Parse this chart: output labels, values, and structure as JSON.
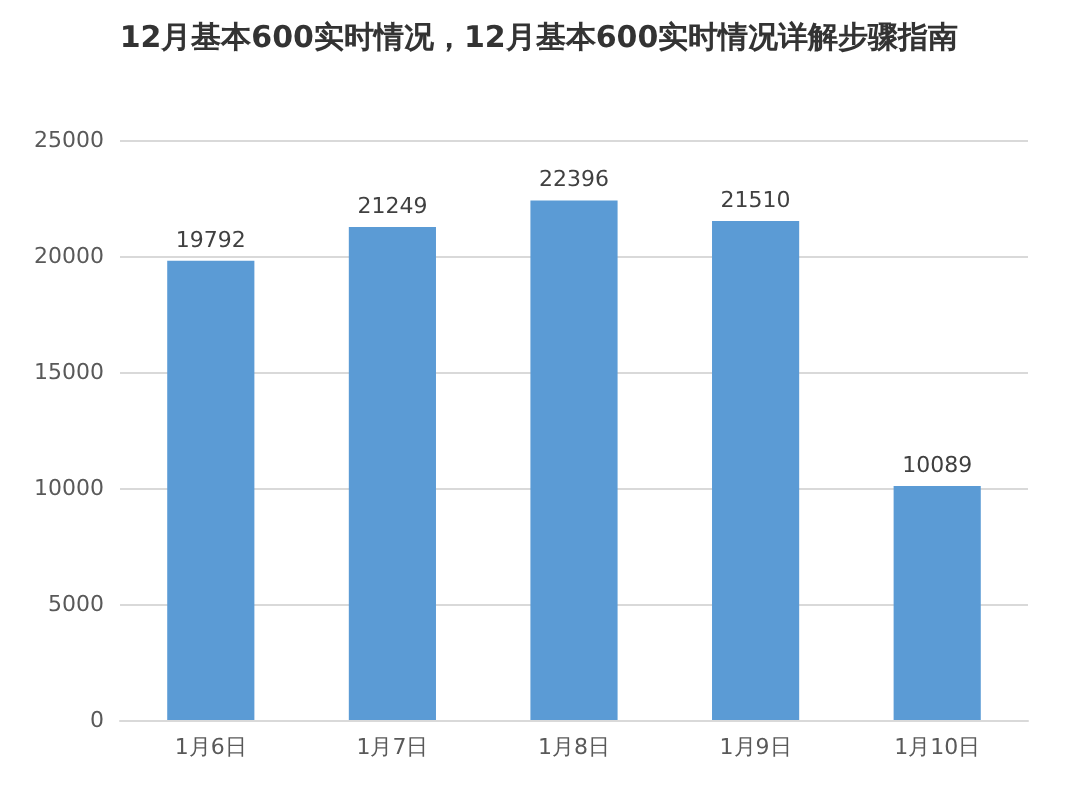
{
  "chart_data": {
    "type": "bar",
    "title": "12月基本600实时情况，12月基本600实时情况详解步骤指南",
    "categories": [
      "1月6日",
      "1月7日",
      "1月8日",
      "1月9日",
      "1月10日"
    ],
    "values": [
      19792,
      21249,
      22396,
      21510,
      10089
    ],
    "color": "#5b9bd5",
    "ylim": [
      0,
      25000
    ],
    "yticks": [
      0,
      5000,
      10000,
      15000,
      20000,
      25000
    ],
    "grid": "y",
    "data_labels": true
  }
}
